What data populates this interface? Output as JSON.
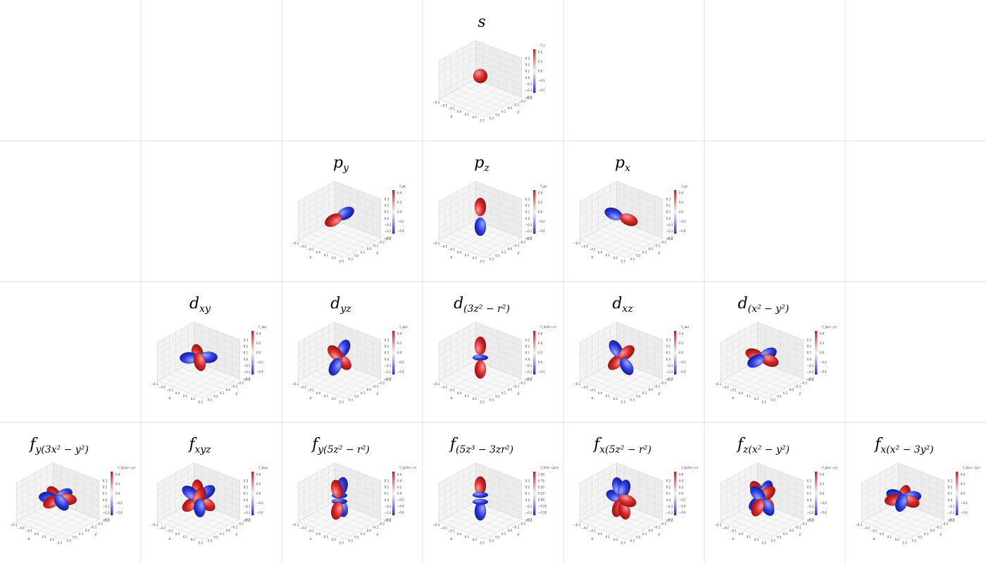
{
  "colors": {
    "positive": "#d62728",
    "negative": "#2f3ee0",
    "grid": "#d6d6d6",
    "pane": "#f3f3f3"
  },
  "axes": {
    "x_label": "x",
    "y_label": "y",
    "z_label": "z"
  },
  "ticks": {
    "x": [
      "−0.3",
      "−0.2",
      "−0.1",
      "0.0",
      "0.1",
      "0.2",
      "0.3"
    ],
    "y": [
      "−0.3",
      "−0.2",
      "−0.1",
      "0.0",
      "0.1",
      "0.2",
      "0.3"
    ],
    "z": [
      "0.3",
      "0.2",
      "0.1",
      "0.0",
      "−0.1",
      "−0.2",
      "−0.3"
    ]
  },
  "orbitals": [
    {
      "id": "s",
      "row": 0,
      "col": 3,
      "title": "s",
      "title_sub": "",
      "colorbar_label": "Y_s",
      "cb_ticks": [
        "0.2",
        "0.1",
        "0.0",
        "−0.1",
        "−0.2"
      ],
      "lobes": [
        [
          0,
          0,
          0,
          "pos"
        ]
      ]
    },
    {
      "id": "py",
      "row": 1,
      "col": 2,
      "title": "p",
      "title_sub": "y",
      "colorbar_label": "Y_py",
      "cb_ticks": [
        "0.4",
        "0.2",
        "0.0",
        "−0.2",
        "−0.4"
      ],
      "lobes": [
        [
          0,
          1,
          0,
          "pos"
        ],
        [
          0,
          -1,
          0,
          "neg"
        ]
      ]
    },
    {
      "id": "pz",
      "row": 1,
      "col": 3,
      "title": "p",
      "title_sub": "z",
      "colorbar_label": "Y_pz",
      "cb_ticks": [
        "0.4",
        "0.2",
        "0.0",
        "−0.2",
        "−0.4"
      ],
      "lobes": [
        [
          0,
          0,
          1,
          "pos"
        ],
        [
          0,
          0,
          -1,
          "neg"
        ]
      ]
    },
    {
      "id": "px",
      "row": 1,
      "col": 4,
      "title": "p",
      "title_sub": "x",
      "colorbar_label": "Y_px",
      "cb_ticks": [
        "0.4",
        "0.2",
        "0.0",
        "−0.2",
        "−0.4"
      ],
      "lobes": [
        [
          1,
          0,
          0,
          "pos"
        ],
        [
          -1,
          0,
          0,
          "neg"
        ]
      ]
    },
    {
      "id": "dxy",
      "row": 2,
      "col": 1,
      "title": "d",
      "title_sub": "xy",
      "colorbar_label": "Y_dxy",
      "cb_ticks": [
        "0.4",
        "0.2",
        "0.0",
        "−0.2",
        "−0.4"
      ],
      "lobes": [
        [
          0.7,
          0.7,
          0,
          "pos"
        ],
        [
          -0.7,
          -0.7,
          0,
          "pos"
        ],
        [
          0.7,
          -0.7,
          0,
          "neg"
        ],
        [
          -0.7,
          0.7,
          0,
          "neg"
        ]
      ]
    },
    {
      "id": "dyz",
      "row": 2,
      "col": 2,
      "title": "d",
      "title_sub": "yz",
      "colorbar_label": "Y_dyz",
      "cb_ticks": [
        "0.4",
        "0.2",
        "0.0",
        "−0.2",
        "−0.4"
      ],
      "lobes": [
        [
          0,
          0.7,
          0.7,
          "pos"
        ],
        [
          0,
          -0.7,
          -0.7,
          "pos"
        ],
        [
          0,
          0.7,
          -0.7,
          "neg"
        ],
        [
          0,
          -0.7,
          0.7,
          "neg"
        ]
      ]
    },
    {
      "id": "dz2",
      "row": 2,
      "col": 3,
      "title": "d",
      "title_sub": "(3z² − r²)",
      "colorbar_label": "Y_d(3z²−r²)",
      "cb_ticks": [
        "0.6",
        "0.4",
        "0.2",
        "0.0",
        "−0.2"
      ],
      "lobes": [
        [
          0,
          0,
          1.2,
          "pos"
        ],
        [
          0,
          0,
          -1.2,
          "pos"
        ],
        [
          0,
          0,
          0,
          "ring"
        ]
      ]
    },
    {
      "id": "dxz",
      "row": 2,
      "col": 4,
      "title": "d",
      "title_sub": "xz",
      "colorbar_label": "Y_dxz",
      "cb_ticks": [
        "0.4",
        "0.2",
        "0.0",
        "−0.2",
        "−0.4"
      ],
      "lobes": [
        [
          0.7,
          0,
          0.7,
          "pos"
        ],
        [
          -0.7,
          0,
          -0.7,
          "pos"
        ],
        [
          0.7,
          0,
          -0.7,
          "neg"
        ],
        [
          -0.7,
          0,
          0.7,
          "neg"
        ]
      ]
    },
    {
      "id": "dx2y2",
      "row": 2,
      "col": 5,
      "title": "d",
      "title_sub": "(x² − y²)",
      "colorbar_label": "Y_d(x²−y²)",
      "cb_ticks": [
        "0.4",
        "0.2",
        "0.0",
        "−0.2",
        "−0.4"
      ],
      "lobes": [
        [
          1,
          0,
          0,
          "pos"
        ],
        [
          -1,
          0,
          0,
          "pos"
        ],
        [
          0,
          1,
          0,
          "neg"
        ],
        [
          0,
          -1,
          0,
          "neg"
        ]
      ]
    },
    {
      "id": "f1",
      "row": 3,
      "col": 0,
      "title": "f",
      "title_sub": "y(3x² − y²)",
      "colorbar_label": "Y_fy(3x²−y²)",
      "cb_ticks": [
        "0.4",
        "0.2",
        "0.0",
        "−0.2",
        "−0.4"
      ],
      "lobes": [
        [
          0,
          1,
          0,
          "pos"
        ],
        [
          0.87,
          -0.5,
          0,
          "pos"
        ],
        [
          -0.87,
          -0.5,
          0,
          "pos"
        ],
        [
          0,
          -1,
          0,
          "neg"
        ],
        [
          0.87,
          0.5,
          0,
          "neg"
        ],
        [
          -0.87,
          0.5,
          0,
          "neg"
        ]
      ]
    },
    {
      "id": "f2",
      "row": 3,
      "col": 1,
      "title": "f",
      "title_sub": "xyz",
      "colorbar_label": "Y_fxyz",
      "cb_ticks": [
        "0.4",
        "0.2",
        "0.0",
        "−0.2",
        "−0.4"
      ],
      "lobes": [
        [
          0.6,
          0.6,
          0.6,
          "pos"
        ],
        [
          -0.6,
          -0.6,
          0.6,
          "pos"
        ],
        [
          0.6,
          -0.6,
          -0.6,
          "pos"
        ],
        [
          -0.6,
          0.6,
          -0.6,
          "pos"
        ],
        [
          -0.6,
          -0.6,
          -0.6,
          "neg"
        ],
        [
          0.6,
          0.6,
          -0.6,
          "neg"
        ],
        [
          -0.6,
          0.6,
          0.6,
          "neg"
        ],
        [
          0.6,
          -0.6,
          0.6,
          "neg"
        ]
      ]
    },
    {
      "id": "f3",
      "row": 3,
      "col": 2,
      "title": "f",
      "title_sub": "y(5z² − r²)",
      "colorbar_label": "Y_fy(5z²−r²)",
      "cb_ticks": [
        "0.6",
        "0.4",
        "0.2",
        "0.0",
        "−0.2",
        "−0.4",
        "−0.6"
      ],
      "lobes": [
        [
          0,
          0.4,
          1.1,
          "pos"
        ],
        [
          0,
          -0.4,
          -1.1,
          "neg"
        ],
        [
          0,
          0.4,
          -1.1,
          "pos"
        ],
        [
          0,
          -0.4,
          1.1,
          "neg"
        ],
        [
          0,
          0,
          0.3,
          "ring"
        ],
        [
          0,
          0,
          -0.3,
          "ring"
        ]
      ]
    },
    {
      "id": "f4",
      "row": 3,
      "col": 3,
      "title": "f",
      "title_sub": "(5z³ − 3zr²)",
      "colorbar_label": "Y_f(5z³−3zr²)",
      "cb_ticks": [
        "1.00",
        "0.75",
        "0.50",
        "0.25",
        "0.00",
        "−0.25",
        "−0.50"
      ],
      "lobes": [
        [
          0,
          0,
          1.3,
          "pos"
        ],
        [
          0,
          0,
          -1.3,
          "neg"
        ],
        [
          0,
          0,
          0.35,
          "ring"
        ],
        [
          0,
          0,
          -0.35,
          "ring"
        ]
      ]
    },
    {
      "id": "f5",
      "row": 3,
      "col": 4,
      "title": "f",
      "title_sub": "x(5z² − r²)",
      "colorbar_label": "Y_fx(5z²−r²)",
      "cb_ticks": [
        "0.6",
        "0.4",
        "0.2",
        "0.0",
        "−0.2",
        "−0.4",
        "−0.6"
      ],
      "lobes": [
        [
          0.4,
          0,
          1.1,
          "neg"
        ],
        [
          -0.4,
          0,
          -1.1,
          "pos"
        ],
        [
          0.4,
          0,
          -1.1,
          "pos"
        ],
        [
          -0.4,
          0,
          1.1,
          "neg"
        ],
        [
          0.8,
          0,
          0,
          "pos"
        ],
        [
          -0.8,
          0,
          0,
          "neg"
        ]
      ]
    },
    {
      "id": "f6",
      "row": 3,
      "col": 5,
      "title": "f",
      "title_sub": "z(x² − y²)",
      "colorbar_label": "Y_fz(x²−y²)",
      "cb_ticks": [
        "0.4",
        "0.2",
        "0.0",
        "−0.2",
        "−0.4"
      ],
      "lobes": [
        [
          0.7,
          0,
          0.7,
          "pos"
        ],
        [
          -0.7,
          0,
          0.7,
          "pos"
        ],
        [
          0,
          0.7,
          0.7,
          "neg"
        ],
        [
          0,
          -0.7,
          0.7,
          "neg"
        ],
        [
          0.7,
          0,
          -0.7,
          "neg"
        ],
        [
          -0.7,
          0,
          -0.7,
          "neg"
        ],
        [
          0,
          0.7,
          -0.7,
          "pos"
        ],
        [
          0,
          -0.7,
          -0.7,
          "pos"
        ]
      ]
    },
    {
      "id": "f7",
      "row": 3,
      "col": 6,
      "title": "f",
      "title_sub": "x(x² − 3y²)",
      "colorbar_label": "Y_fx(x²−3y²)",
      "cb_ticks": [
        "0.4",
        "0.2",
        "0.0",
        "−0.2",
        "−0.4"
      ],
      "lobes": [
        [
          1,
          0,
          0,
          "pos"
        ],
        [
          -0.5,
          0.87,
          0,
          "pos"
        ],
        [
          -0.5,
          -0.87,
          0,
          "pos"
        ],
        [
          -1,
          0,
          0,
          "neg"
        ],
        [
          0.5,
          0.87,
          0,
          "neg"
        ],
        [
          0.5,
          -0.87,
          0,
          "neg"
        ]
      ]
    }
  ]
}
